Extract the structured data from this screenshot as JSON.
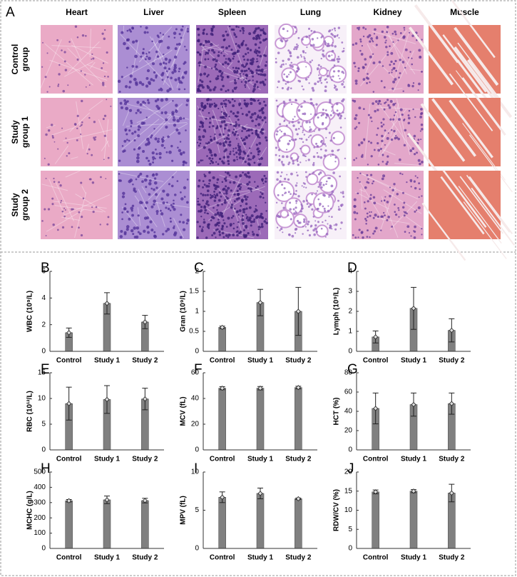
{
  "panel_a": {
    "label": "A",
    "columns": [
      "Heart",
      "Liver",
      "Spleen",
      "Lung",
      "Kidney",
      "Muscle"
    ],
    "rows": [
      [
        "Control",
        "group"
      ],
      [
        "Study",
        "group 1"
      ],
      [
        "Study",
        "group 2"
      ]
    ]
  },
  "chart_data": [
    {
      "type": "bar",
      "label": "B",
      "ylabel": "WBC (10⁹/L)",
      "categories": [
        "Control",
        "Study 1",
        "Study 2"
      ],
      "values": [
        1.4,
        3.6,
        2.2
      ],
      "errors": [
        0.35,
        0.8,
        0.5
      ],
      "color": "#808080",
      "ylim": [
        0,
        6
      ],
      "yticks": [
        0,
        2,
        4,
        6
      ]
    },
    {
      "type": "bar",
      "label": "C",
      "ylabel": "Gran (10⁹/L)",
      "categories": [
        "Control",
        "Study 1",
        "Study 2"
      ],
      "values": [
        0.6,
        1.22,
        1.0
      ],
      "errors": [
        0.03,
        0.33,
        0.6
      ],
      "color": "#808080",
      "ylim": [
        0,
        2
      ],
      "yticks": [
        0,
        0.5,
        1,
        1.5,
        2
      ]
    },
    {
      "type": "bar",
      "label": "D",
      "ylabel": "Lymph (10⁹/L)",
      "categories": [
        "Control",
        "Study 1",
        "Study 2"
      ],
      "values": [
        0.72,
        2.15,
        1.05
      ],
      "errors": [
        0.3,
        1.05,
        0.58
      ],
      "color": "#808080",
      "ylim": [
        0,
        4
      ],
      "yticks": [
        0,
        1,
        2,
        3,
        4
      ]
    },
    {
      "type": "bar",
      "label": "E",
      "ylabel": "RBC (10¹²/L)",
      "categories": [
        "Control",
        "Study 1",
        "Study 2"
      ],
      "values": [
        9.0,
        9.8,
        9.9
      ],
      "errors": [
        3.2,
        2.7,
        2.1
      ],
      "color": "#808080",
      "ylim": [
        0,
        15
      ],
      "yticks": [
        0,
        5,
        10,
        15
      ]
    },
    {
      "type": "bar",
      "label": "F",
      "ylabel": "MCV (fL)",
      "categories": [
        "Control",
        "Study 1",
        "Study 2"
      ],
      "values": [
        48,
        48,
        48.5
      ],
      "errors": [
        1.2,
        1.3,
        1.0
      ],
      "color": "#808080",
      "ylim": [
        0,
        60
      ],
      "yticks": [
        0,
        20,
        40,
        60
      ]
    },
    {
      "type": "bar",
      "label": "G",
      "ylabel": "HCT (%)",
      "categories": [
        "Control",
        "Study 1",
        "Study 2"
      ],
      "values": [
        43,
        47,
        48
      ],
      "errors": [
        16,
        12,
        11
      ],
      "color": "#808080",
      "ylim": [
        0,
        80
      ],
      "yticks": [
        0,
        20,
        40,
        60,
        80
      ]
    },
    {
      "type": "bar",
      "label": "H",
      "ylabel": "MCHC (g/L)",
      "categories": [
        "Control",
        "Study 1",
        "Study 2"
      ],
      "values": [
        312,
        318,
        313
      ],
      "errors": [
        8,
        25,
        15
      ],
      "color": "#808080",
      "ylim": [
        0,
        500
      ],
      "yticks": [
        0,
        100,
        200,
        300,
        400,
        500
      ]
    },
    {
      "type": "bar",
      "label": "I",
      "ylabel": "MPV (fL)",
      "categories": [
        "Control",
        "Study 1",
        "Study 2"
      ],
      "values": [
        6.7,
        7.2,
        6.5
      ],
      "errors": [
        0.7,
        0.7,
        0.1
      ],
      "color": "#808080",
      "ylim": [
        0,
        10
      ],
      "yticks": [
        0,
        5,
        10
      ]
    },
    {
      "type": "bar",
      "label": "J",
      "ylabel": "RDW/CV (%)",
      "categories": [
        "Control",
        "Study 1",
        "Study 2"
      ],
      "values": [
        14.8,
        15.0,
        14.5
      ],
      "errors": [
        0.5,
        0.4,
        2.3
      ],
      "color": "#808080",
      "ylim": [
        0,
        20
      ],
      "yticks": [
        0,
        5,
        10,
        15,
        20
      ]
    }
  ]
}
